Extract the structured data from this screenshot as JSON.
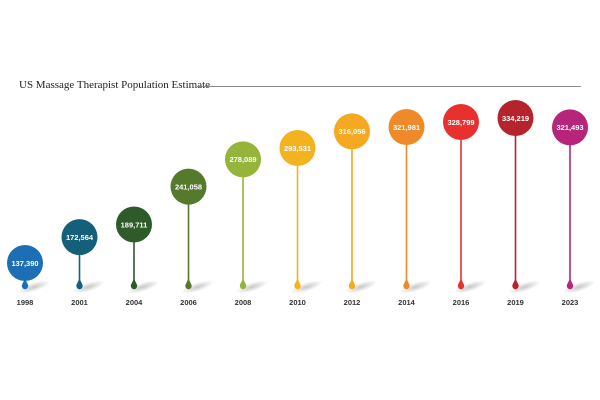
{
  "chart_data": {
    "type": "scatter",
    "title": "US Massage Therapist Population Estimate",
    "categories": [
      "1998",
      "2001",
      "2004",
      "2006",
      "2008",
      "2010",
      "2012",
      "2014",
      "2016",
      "2019",
      "2023"
    ],
    "values": [
      137390,
      172564,
      189711,
      241058,
      278089,
      293531,
      316056,
      321981,
      328799,
      334219,
      321493
    ],
    "value_labels": [
      "137,390",
      "172,564",
      "189,711",
      "241,058",
      "278,089",
      "293,531",
      "316,056",
      "321,981",
      "328,799",
      "334,219",
      "321,493"
    ],
    "colors": [
      "#1d6eb5",
      "#14607a",
      "#2f5b2b",
      "#557a2c",
      "#95b43a",
      "#f2b31f",
      "#f5a822",
      "#ee8a28",
      "#e8312f",
      "#b5232d",
      "#b7257a"
    ],
    "grid": false,
    "legend": "none"
  }
}
